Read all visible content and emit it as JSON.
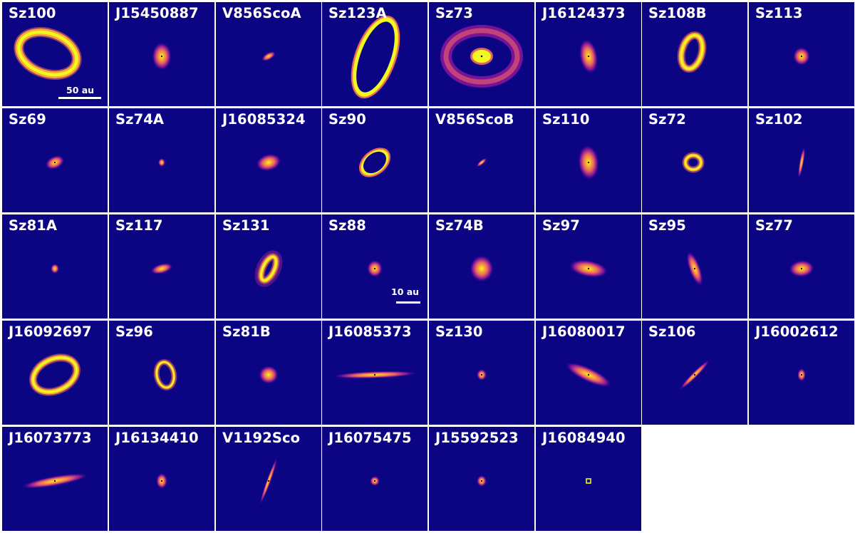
{
  "figure": {
    "panels": [
      {
        "name": "Sz100",
        "scalebar": "50 au"
      },
      {
        "name": "J15450887"
      },
      {
        "name": "V856ScoA"
      },
      {
        "name": "Sz123A"
      },
      {
        "name": "Sz73"
      },
      {
        "name": "J16124373"
      },
      {
        "name": "Sz108B"
      },
      {
        "name": "Sz113"
      },
      {
        "name": "Sz69"
      },
      {
        "name": "Sz74A"
      },
      {
        "name": "J16085324"
      },
      {
        "name": "Sz90"
      },
      {
        "name": "V856ScoB"
      },
      {
        "name": "Sz110"
      },
      {
        "name": "Sz72"
      },
      {
        "name": "Sz102"
      },
      {
        "name": "Sz81A"
      },
      {
        "name": "Sz117"
      },
      {
        "name": "Sz131"
      },
      {
        "name": "Sz88",
        "scalebar": "10 au"
      },
      {
        "name": "Sz74B"
      },
      {
        "name": "Sz97"
      },
      {
        "name": "Sz95"
      },
      {
        "name": "Sz77"
      },
      {
        "name": "J16092697"
      },
      {
        "name": "Sz96"
      },
      {
        "name": "Sz81B"
      },
      {
        "name": "J16085373"
      },
      {
        "name": "Sz130"
      },
      {
        "name": "J16080017"
      },
      {
        "name": "Sz106"
      },
      {
        "name": "J16002612"
      },
      {
        "name": "J16073773"
      },
      {
        "name": "J16134410"
      },
      {
        "name": "V1192Sco"
      },
      {
        "name": "J16075475"
      },
      {
        "name": "J15592523"
      },
      {
        "name": "J16084940"
      }
    ]
  },
  "colors": {
    "background": "#0c0583",
    "colormap": [
      "#0c0583",
      "#6a00a8",
      "#b12a90",
      "#e16462",
      "#fca636",
      "#f0f921"
    ],
    "label": "#ffffff"
  }
}
